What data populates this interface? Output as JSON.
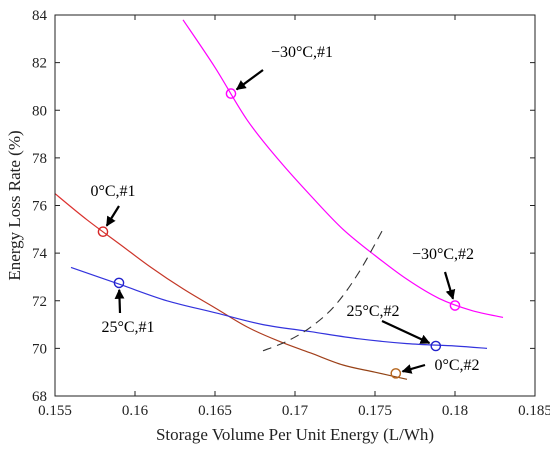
{
  "chart_data": {
    "type": "line",
    "title": "",
    "xlabel": "Storage Volume Per Unit Energy (L/Wh)",
    "ylabel": "Energy Loss Rate (%)",
    "xlim": [
      0.155,
      0.185
    ],
    "ylim": [
      68,
      84
    ],
    "xticks": [
      0.155,
      0.16,
      0.165,
      0.17,
      0.175,
      0.18,
      0.185
    ],
    "xtick_labels": [
      "0.155",
      "0.16",
      "0.165",
      "0.17",
      "0.175",
      "0.18",
      "0.185"
    ],
    "yticks": [
      68,
      70,
      72,
      74,
      76,
      78,
      80,
      82,
      84
    ],
    "ytick_labels": [
      "68",
      "70",
      "72",
      "74",
      "76",
      "78",
      "80",
      "82",
      "84"
    ],
    "grid": false,
    "series": [
      {
        "color": "#ff00ff",
        "x": [
          0.163,
          0.165,
          0.167,
          0.169,
          0.171,
          0.173,
          0.175,
          0.177,
          0.179,
          0.181,
          0.183
        ],
        "y": [
          83.8,
          81.8,
          79.6,
          77.9,
          76.4,
          75.0,
          73.9,
          72.9,
          72.1,
          71.6,
          71.3
        ]
      },
      {
        "color": "#d62728",
        "x": [
          0.155,
          0.157,
          0.159,
          0.161,
          0.163,
          0.165,
          0.167,
          0.169,
          0.171,
          0.173,
          0.175,
          0.177
        ],
        "y": [
          76.5,
          75.4,
          74.4,
          73.4,
          72.5,
          71.7,
          70.9,
          70.3,
          69.8,
          69.3,
          69.0,
          68.7
        ]
      },
      {
        "color": "#3333dd",
        "x": [
          0.156,
          0.159,
          0.162,
          0.165,
          0.168,
          0.171,
          0.174,
          0.177,
          0.18,
          0.182
        ],
        "y": [
          73.4,
          72.7,
          72.0,
          71.5,
          71.0,
          70.7,
          70.4,
          70.2,
          70.1,
          70.0
        ]
      },
      {
        "color": "#333333",
        "dashed": true,
        "x": [
          0.168,
          0.1695,
          0.171,
          0.1725,
          0.174,
          0.1755
        ],
        "y": [
          69.9,
          70.3,
          70.9,
          71.8,
          73.2,
          75.0
        ]
      }
    ],
    "annotations": [
      {
        "label": "−30°C,#1",
        "x": 0.166,
        "y": 80.7,
        "marker_color": "#ff00ff"
      },
      {
        "label": "−30°C,#2",
        "x": 0.18,
        "y": 71.8,
        "marker_color": "#ff00ff"
      },
      {
        "label": "0°C,#1",
        "x": 0.158,
        "y": 74.9,
        "marker_color": "#d62728"
      },
      {
        "label": "0°C,#2",
        "x": 0.1763,
        "y": 68.95,
        "marker_color": "#b5651d"
      },
      {
        "label": "25°C,#1",
        "x": 0.159,
        "y": 72.75,
        "marker_color": "#2222cc"
      },
      {
        "label": "25°C,#2",
        "x": 0.1788,
        "y": 70.1,
        "marker_color": "#2222cc"
      }
    ]
  }
}
